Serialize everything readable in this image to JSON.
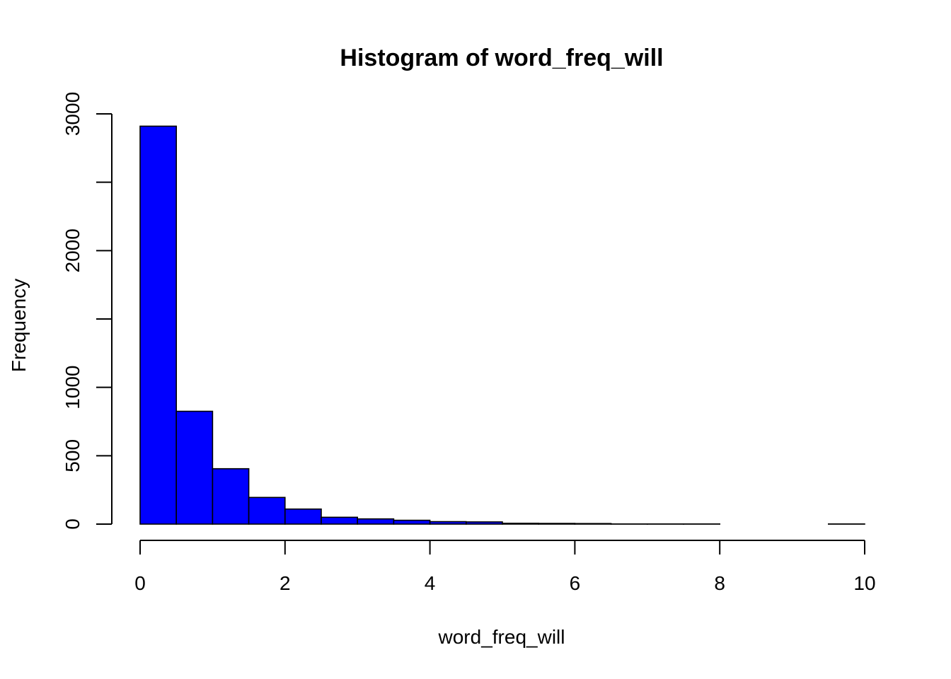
{
  "chart_data": {
    "type": "bar",
    "title": "Histogram of word_freq_will",
    "xlabel": "word_freq_will",
    "ylabel": "Frequency",
    "bar_color": "#0000ff",
    "xlim": [
      0,
      10
    ],
    "ylim": [
      0,
      3000
    ],
    "x_ticks": [
      0,
      2,
      4,
      6,
      8,
      10
    ],
    "y_ticks": [
      0,
      500,
      1000,
      1500,
      2000,
      2500,
      3000
    ],
    "y_tick_labels": [
      "0",
      "500",
      "1000",
      "",
      "2000",
      "",
      "3000"
    ],
    "bins": [
      {
        "x0": 0.0,
        "x1": 0.5,
        "count": 2910
      },
      {
        "x0": 0.5,
        "x1": 1.0,
        "count": 825
      },
      {
        "x0": 1.0,
        "x1": 1.5,
        "count": 405
      },
      {
        "x0": 1.5,
        "x1": 2.0,
        "count": 195
      },
      {
        "x0": 2.0,
        "x1": 2.5,
        "count": 110
      },
      {
        "x0": 2.5,
        "x1": 3.0,
        "count": 50
      },
      {
        "x0": 3.0,
        "x1": 3.5,
        "count": 38
      },
      {
        "x0": 3.5,
        "x1": 4.0,
        "count": 28
      },
      {
        "x0": 4.0,
        "x1": 4.5,
        "count": 18
      },
      {
        "x0": 4.5,
        "x1": 5.0,
        "count": 16
      },
      {
        "x0": 5.0,
        "x1": 5.5,
        "count": 6
      },
      {
        "x0": 5.5,
        "x1": 6.0,
        "count": 5
      },
      {
        "x0": 6.0,
        "x1": 6.5,
        "count": 4
      },
      {
        "x0": 6.5,
        "x1": 7.0,
        "count": 1
      },
      {
        "x0": 7.0,
        "x1": 7.5,
        "count": 1
      },
      {
        "x0": 7.5,
        "x1": 8.0,
        "count": 1
      },
      {
        "x0": 8.0,
        "x1": 8.5,
        "count": 0
      },
      {
        "x0": 8.5,
        "x1": 9.0,
        "count": 0
      },
      {
        "x0": 9.0,
        "x1": 9.5,
        "count": 0
      },
      {
        "x0": 9.5,
        "x1": 10.0,
        "count": 1
      }
    ]
  }
}
